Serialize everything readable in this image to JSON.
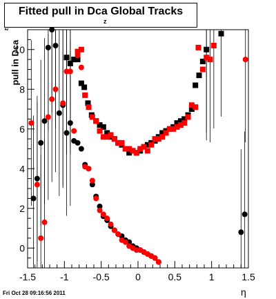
{
  "title": {
    "main": "Fitted pull in Dca Global Tracks",
    "sub": "z"
  },
  "axes": {
    "ylabel": "pull in Dca",
    "ylabel_sub": "z",
    "xlabel": "η"
  },
  "timestamp": "Fri Oct 28 09:16:56 2011",
  "chart_data": {
    "type": "scatter",
    "title": "Fitted pull in Dca Global Tracks",
    "xlabel": "η",
    "ylabel": "pull in Dca z",
    "xlim": [
      -1.5,
      1.5
    ],
    "ylim": [
      -1,
      11
    ],
    "xticks": [
      -1.5,
      -1,
      -0.5,
      0,
      0.5,
      1,
      1.5
    ],
    "yticks": [
      0,
      2,
      4,
      6,
      8,
      10
    ],
    "grid": false,
    "colors": {
      "black": "#000000",
      "red": "#ff0000"
    },
    "series": [
      {
        "color": "black",
        "marker": "square",
        "points": [
          [
            -0.97,
            9.6
          ],
          [
            -0.92,
            9.3
          ],
          [
            -0.87,
            9.5
          ],
          [
            -0.82,
            9.5
          ],
          [
            -0.77,
            8.3
          ],
          [
            -0.73,
            8.1
          ],
          [
            -0.68,
            7.3
          ],
          [
            -0.63,
            6.7
          ],
          [
            -0.57,
            6.4
          ],
          [
            -0.52,
            6.2
          ],
          [
            -0.47,
            6.1
          ],
          [
            -0.42,
            5.8
          ],
          [
            -0.37,
            5.6
          ],
          [
            -0.32,
            5.5
          ],
          [
            -0.27,
            5.3
          ],
          [
            -0.22,
            5.2
          ],
          [
            -0.17,
            5.0
          ],
          [
            -0.12,
            4.8
          ],
          [
            -0.07,
            4.9
          ],
          [
            -0.02,
            4.8
          ],
          [
            0.03,
            4.9
          ],
          [
            0.08,
            5.1
          ],
          [
            0.13,
            5.2
          ],
          [
            0.18,
            5.3
          ],
          [
            0.23,
            5.4
          ],
          [
            0.28,
            5.6
          ],
          [
            0.33,
            5.8
          ],
          [
            0.38,
            5.9
          ],
          [
            0.43,
            6.0
          ],
          [
            0.48,
            6.1
          ],
          [
            0.53,
            6.3
          ],
          [
            0.58,
            6.4
          ],
          [
            0.63,
            6.5
          ],
          [
            0.68,
            6.7
          ],
          [
            0.73,
            7.0
          ],
          [
            0.78,
            8.2
          ],
          [
            0.83,
            8.7
          ],
          [
            0.88,
            9.4
          ],
          [
            0.93,
            10.0
          ],
          [
            1.13,
            10.8
          ]
        ]
      },
      {
        "color": "red",
        "marker": "square",
        "points": [
          [
            -0.82,
            9.9
          ],
          [
            -0.77,
            10.0
          ],
          [
            -0.72,
            7.7
          ],
          [
            -0.67,
            7.1
          ],
          [
            -0.62,
            6.6
          ],
          [
            -0.57,
            6.4
          ],
          [
            -0.52,
            5.9
          ],
          [
            -0.47,
            5.6
          ],
          [
            -0.42,
            5.6
          ],
          [
            -0.37,
            5.7
          ],
          [
            -0.32,
            5.5
          ],
          [
            -0.27,
            5.3
          ],
          [
            -0.22,
            5.3
          ],
          [
            -0.17,
            5.0
          ],
          [
            -0.12,
            5.0
          ],
          [
            -0.07,
            4.9
          ],
          [
            -0.02,
            4.8
          ],
          [
            0.03,
            5.0
          ],
          [
            0.08,
            5.1
          ],
          [
            0.13,
            4.9
          ],
          [
            0.18,
            5.2
          ],
          [
            0.23,
            5.5
          ],
          [
            0.28,
            5.5
          ],
          [
            0.33,
            5.6
          ],
          [
            0.38,
            5.8
          ],
          [
            0.43,
            6.0
          ],
          [
            0.48,
            6.0
          ],
          [
            0.53,
            6.1
          ],
          [
            0.58,
            6.2
          ],
          [
            0.63,
            6.3
          ],
          [
            0.68,
            6.6
          ],
          [
            0.73,
            7.2
          ],
          [
            0.78,
            7.1
          ],
          [
            0.82,
            10.1
          ],
          [
            0.88,
            9.0
          ],
          [
            0.93,
            9.6
          ],
          [
            0.98,
            9.5
          ],
          [
            1.03,
            10.2
          ]
        ]
      },
      {
        "color": "black",
        "marker": "circle",
        "points": [
          [
            -1.42,
            2.5
          ],
          [
            -1.37,
            3.5
          ],
          [
            -1.32,
            5.3
          ],
          [
            -1.27,
            6.4
          ],
          [
            -1.22,
            10.1
          ],
          [
            -1.17,
            11.0
          ],
          [
            -1.12,
            10.2
          ],
          [
            -1.07,
            6.8
          ],
          [
            -1.02,
            7.2
          ],
          [
            -0.97,
            5.8
          ],
          [
            -0.92,
            6.3
          ],
          [
            -0.87,
            5.4
          ],
          [
            -0.82,
            5.3
          ],
          [
            -0.77,
            5.0
          ],
          [
            -0.72,
            4.2
          ],
          [
            -0.67,
            4.0
          ],
          [
            -0.62,
            3.2
          ],
          [
            -0.57,
            2.6
          ],
          [
            -0.52,
            2.1
          ],
          [
            -0.47,
            1.6
          ],
          [
            -0.42,
            1.4
          ],
          [
            -0.37,
            1.1
          ],
          [
            -0.32,
            0.9
          ],
          [
            -0.27,
            0.7
          ],
          [
            -0.22,
            0.6
          ],
          [
            -0.17,
            0.4
          ],
          [
            -0.12,
            0.3
          ],
          [
            -0.07,
            0.1
          ],
          [
            -0.02,
            0.0
          ],
          [
            0.03,
            -0.1
          ],
          [
            0.08,
            -0.2
          ],
          [
            0.13,
            -0.3
          ],
          [
            0.18,
            -0.4
          ],
          [
            0.23,
            -0.5
          ],
          [
            0.28,
            -0.7
          ],
          [
            1.4,
            0.8
          ],
          [
            1.45,
            1.7
          ]
        ]
      },
      {
        "color": "red",
        "marker": "circle",
        "points": [
          [
            -1.45,
            6.3
          ],
          [
            -1.37,
            3.2
          ],
          [
            -1.32,
            0.5
          ],
          [
            -1.27,
            1.3
          ],
          [
            -1.22,
            6.6
          ],
          [
            -1.17,
            7.5
          ],
          [
            -1.12,
            8.0
          ],
          [
            -1.02,
            7.3
          ],
          [
            -0.97,
            8.9
          ],
          [
            -0.92,
            8.9
          ],
          [
            -0.87,
            5.9
          ],
          [
            -0.82,
            9.7
          ],
          [
            -0.77,
            9.1
          ],
          [
            -0.72,
            4.1
          ],
          [
            -0.67,
            4.0
          ],
          [
            -0.62,
            3.4
          ],
          [
            -0.57,
            2.5
          ],
          [
            -0.52,
            1.9
          ],
          [
            -0.47,
            1.7
          ],
          [
            -0.42,
            1.5
          ],
          [
            -0.37,
            1.2
          ],
          [
            -0.32,
            0.9
          ],
          [
            -0.27,
            0.7
          ],
          [
            -0.22,
            0.4
          ],
          [
            -0.17,
            0.3
          ],
          [
            -0.12,
            0.1
          ],
          [
            -0.07,
            0.0
          ],
          [
            -0.02,
            -0.1
          ],
          [
            0.03,
            -0.1
          ],
          [
            0.08,
            -0.2
          ],
          [
            0.13,
            -0.3
          ],
          [
            0.18,
            -0.4
          ],
          [
            0.23,
            -0.5
          ],
          [
            0.28,
            -0.7
          ],
          [
            1.46,
            9.5
          ]
        ]
      }
    ]
  }
}
